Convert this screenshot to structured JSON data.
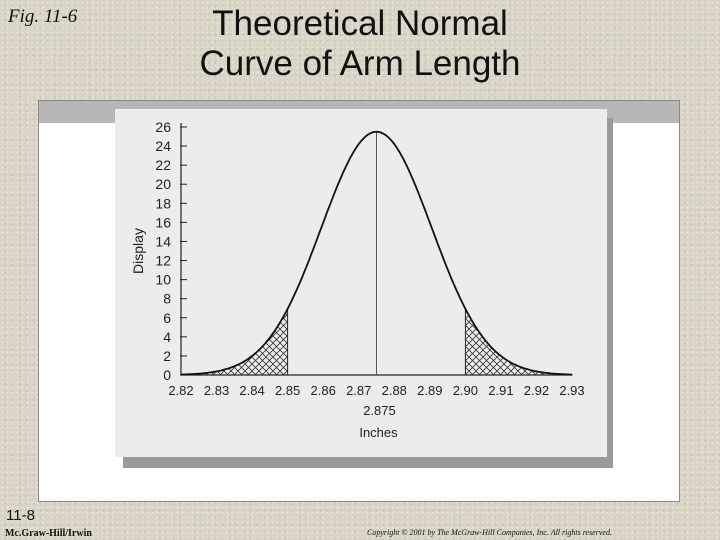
{
  "slide": {
    "fig_label": "Fig. 11-6",
    "title_line1": "Theoretical Normal",
    "title_line2": "Curve of Arm Length",
    "slide_number": "11-8",
    "publisher": "Mc.Graw-Hill/Irwin",
    "copyright": "Copyright © 2001 by The McGraw-Hill Companies, Inc.  All rights reserved."
  },
  "chart_data": {
    "type": "area",
    "title": "",
    "xlabel": "Inches",
    "ylabel": "Display",
    "xlim": [
      2.82,
      2.93
    ],
    "ylim": [
      0,
      26
    ],
    "x_ticks": [
      "2.82",
      "2.83",
      "2.84",
      "2.85",
      "2.86",
      "2.87",
      "2.88",
      "2.89",
      "2.90",
      "2.91",
      "2.92",
      "2.93"
    ],
    "y_ticks": [
      0,
      2,
      4,
      6,
      8,
      10,
      12,
      14,
      16,
      18,
      20,
      22,
      24,
      26
    ],
    "mean_label": "2.875",
    "curve": {
      "distribution": "normal",
      "mean": 2.875,
      "sd": 0.0155,
      "peak": 25.5
    },
    "hatched_regions": [
      {
        "from": 2.82,
        "to": 2.85
      },
      {
        "from": 2.9,
        "to": 2.93
      }
    ],
    "grid": false
  }
}
